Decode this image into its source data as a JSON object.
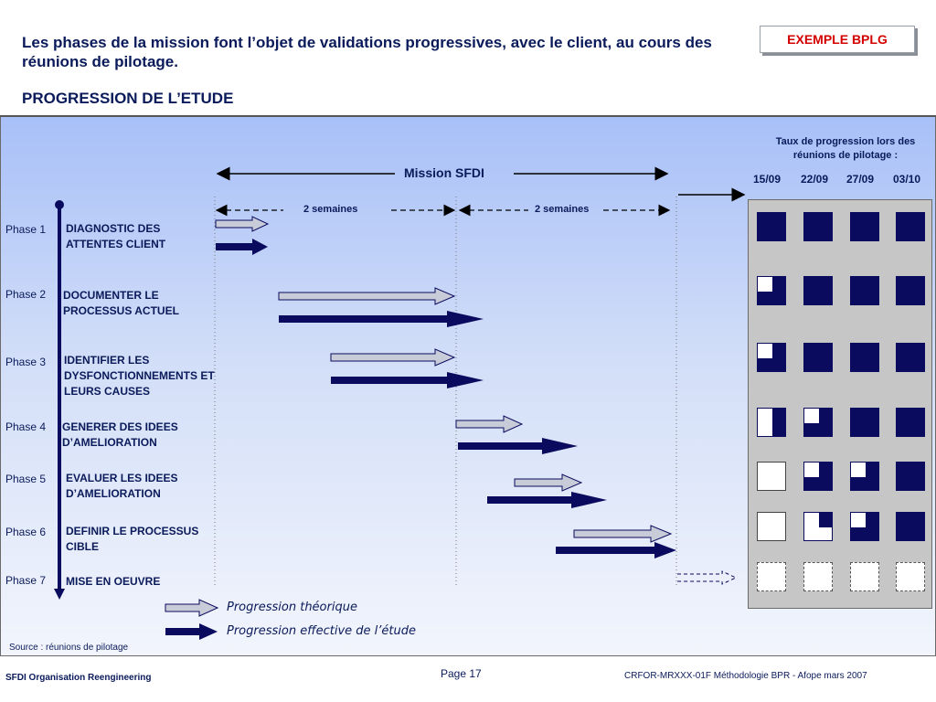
{
  "header": {
    "title": "Les phases de la mission font l’objet de validations progressives, avec le client, au cours des réunions de pilotage.",
    "subtitle": "PROGRESSION DE L’ETUDE",
    "badge": "EXEMPLE BPLG"
  },
  "mission": {
    "label": "Mission SFDI",
    "week1": "2 semaines",
    "week2": "2 semaines"
  },
  "phases": [
    {
      "label": "Phase 1",
      "text": "DIAGNOSTIC DES ATTENTES CLIENT"
    },
    {
      "label": "Phase 2",
      "text": "DOCUMENTER LE PROCESSUS ACTUEL"
    },
    {
      "label": "Phase 3",
      "text": "IDENTIFIER LES DYSFONCTIONNEMENTS ET LEURS CAUSES"
    },
    {
      "label": "Phase 4",
      "text": "GENERER DES IDEES D’AMELIORATION"
    },
    {
      "label": "Phase 5",
      "text": "EVALUER LES IDEES D’AMELIORATION"
    },
    {
      "label": "Phase 6",
      "text": "DEFINIR LE PROCESSUS CIBLE"
    },
    {
      "label": "Phase 7",
      "text": "MISE EN OEUVRE"
    }
  ],
  "progress_panel": {
    "title": "Taux de progression lors des réunions de pilotage :",
    "dates": [
      "15/09",
      "22/09",
      "27/09",
      "03/10"
    ],
    "status": [
      [
        "full",
        "full",
        "full",
        "full"
      ],
      [
        "three-quarter",
        "full",
        "full",
        "full"
      ],
      [
        "three-quarter",
        "full",
        "full",
        "full"
      ],
      [
        "half",
        "three-quarter",
        "full",
        "full"
      ],
      [
        "empty",
        "three-quarter",
        "three-quarter",
        "full"
      ],
      [
        "empty",
        "quarter",
        "three-quarter",
        "full"
      ],
      [
        "none",
        "none",
        "none",
        "none"
      ]
    ]
  },
  "legend": {
    "theoretical": "Progression théorique",
    "actual": "Progression effective de l’étude"
  },
  "colors": {
    "navy": "#0a0a5e",
    "theoretical_fill": "#c8ccd8",
    "text": "#0a1a5a",
    "badge_red": "#d40000"
  },
  "source": "Source : réunions de pilotage",
  "footer": {
    "left": "SFDI Organisation Reengineering",
    "page": "Page 17",
    "right": "CRFOR-MRXXX-01F Méthodologie BPR - Afope mars 2007"
  }
}
